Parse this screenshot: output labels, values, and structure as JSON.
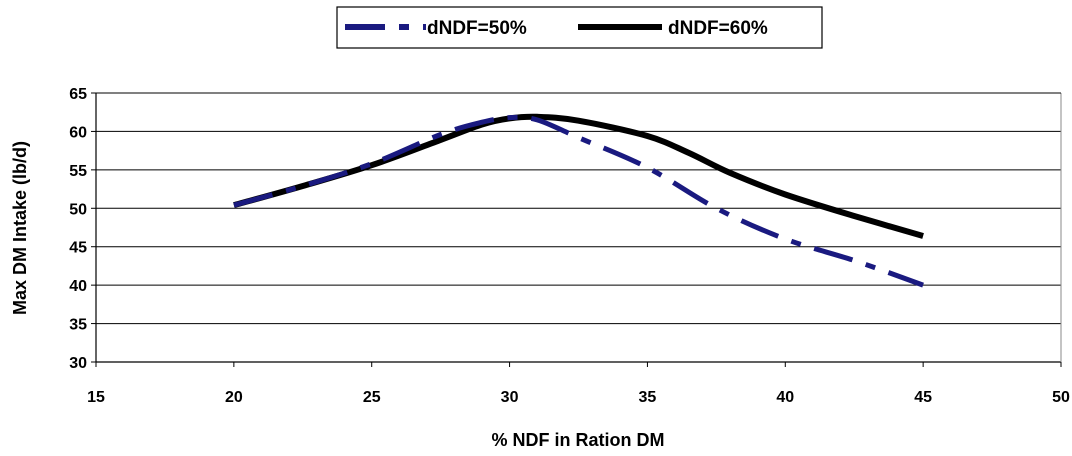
{
  "chart_data": {
    "type": "line",
    "xlabel": "% NDF in Ration DM",
    "ylabel": "Max DM Intake (lb/d)",
    "xlim": [
      15,
      50
    ],
    "ylim": [
      30,
      65
    ],
    "xticks": [
      "15",
      "20",
      "25",
      "30",
      "35",
      "40",
      "45",
      "50"
    ],
    "yticks": [
      "30",
      "35",
      "40",
      "45",
      "50",
      "55",
      "60",
      "65"
    ],
    "grid": "horizontal",
    "legend_placement": "top-center",
    "series": [
      {
        "name": "dNDF=50%",
        "color": "#1a1a80",
        "style": "dashed",
        "x": [
          20,
          22.5,
          25,
          27.5,
          29,
          30,
          31,
          32.5,
          35,
          37.5,
          40,
          42.5,
          45
        ],
        "y": [
          50.4,
          52.9,
          55.8,
          59.6,
          61.2,
          61.8,
          61.5,
          59.2,
          55.3,
          50.0,
          46.0,
          43.2,
          40.0
        ]
      },
      {
        "name": "dNDF=60%",
        "color": "#000000",
        "style": "solid",
        "x": [
          20,
          22.5,
          25,
          27.5,
          29,
          30,
          31,
          32.5,
          35,
          36.5,
          38,
          40,
          42.5,
          45
        ],
        "y": [
          50.4,
          52.9,
          55.6,
          58.9,
          60.9,
          61.7,
          61.9,
          61.4,
          59.4,
          57.2,
          54.6,
          51.8,
          49.0,
          46.4
        ]
      }
    ]
  }
}
